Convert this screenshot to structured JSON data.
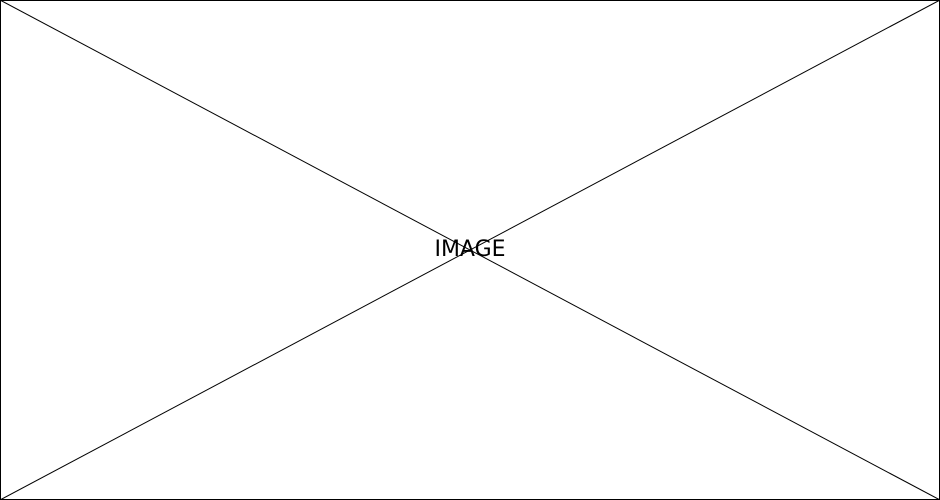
{
  "placeholder": {
    "label": "IMAGE",
    "line_color": "#000000",
    "background_color": "#ffffff"
  }
}
